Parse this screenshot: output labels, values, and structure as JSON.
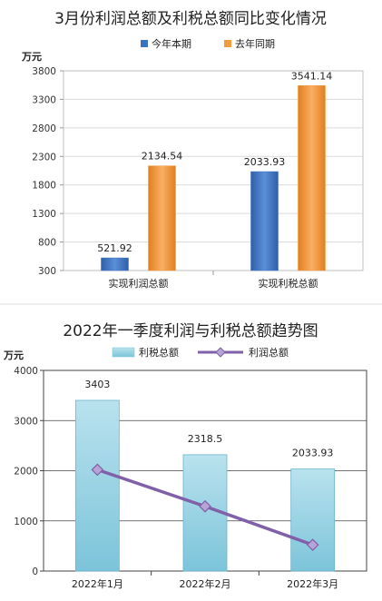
{
  "chart_data": [
    {
      "type": "bar",
      "title": "3月份利润总额及利税总额同比变化情况",
      "unit_label": "万元",
      "categories": [
        "实现利润总额",
        "实现利税总额"
      ],
      "series": [
        {
          "name": "今年本期",
          "values": [
            521.92,
            2033.93
          ],
          "labels": [
            "521.92",
            "2033.93"
          ],
          "color": "#3e72c2"
        },
        {
          "name": "去年同期",
          "values": [
            2134.54,
            3541.14
          ],
          "labels": [
            "2134.54",
            "3541.14"
          ],
          "color": "#f39a3a"
        }
      ],
      "yticks": [
        "3800",
        "3300",
        "2800",
        "2300",
        "1800",
        "1300",
        "800",
        "300"
      ],
      "ylim": [
        300,
        3800
      ],
      "grid": true,
      "legend": "top"
    },
    {
      "type": "bar+line",
      "title": "2022年一季度利润与利税总额趋势图",
      "unit_label": "万元",
      "categories": [
        "2022年1月",
        "2022年2月",
        "2022年3月"
      ],
      "series": [
        {
          "name": "利税总额",
          "type": "bar",
          "values": [
            3403,
            2318.5,
            2033.93
          ],
          "labels": [
            "3403",
            "2318.5",
            "2033.93"
          ],
          "color": "#8ecfe0"
        },
        {
          "name": "利润总额",
          "type": "line",
          "values": [
            2020,
            1290,
            522
          ],
          "color": "#8060a8"
        }
      ],
      "yticks": [
        "4000",
        "3000",
        "2000",
        "1000",
        "0"
      ],
      "ylim": [
        0,
        4000
      ],
      "grid": true,
      "legend": "top"
    }
  ]
}
